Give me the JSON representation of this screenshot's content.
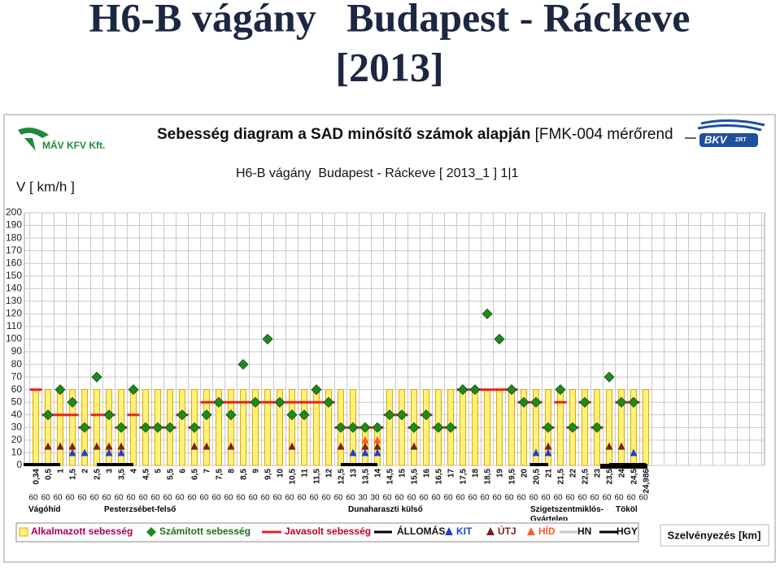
{
  "page_title": "H6-B vágány   Budapest - Ráckeve",
  "page_year": "[2013]",
  "logos": [
    "MÁV KFV Kft.",
    "BKV",
    "ZRT"
  ],
  "chart_data": {
    "type": "combo",
    "title": "Sebesség diagram a SAD minősítő számok alapján",
    "title_note": "[FMK-004 mérőrend",
    "subtitle": "H6-B vágány  Budapest - Ráckeve [ 2013_1 ] 1|1",
    "ylabel": "V [ km/h ]",
    "xlabel": "Szelvényezés [km]",
    "ylim": [
      0,
      200
    ],
    "yticks": [
      0,
      10,
      20,
      30,
      40,
      50,
      60,
      70,
      80,
      90,
      100,
      110,
      120,
      130,
      140,
      150,
      160,
      170,
      180,
      190,
      200
    ],
    "grid": true,
    "categories": [
      "0,34",
      "0,5",
      "1",
      "1,5",
      "2",
      "2,5",
      "3",
      "3,5",
      "4",
      "4,5",
      "5",
      "5,5",
      "6",
      "6,5",
      "7",
      "7,5",
      "8",
      "8,5",
      "9",
      "9,5",
      "10",
      "10,5",
      "11",
      "11,5",
      "12",
      "12,5",
      "13",
      "13,5",
      "14",
      "14,5",
      "15",
      "15,5",
      "16",
      "16,5",
      "17",
      "17,5",
      "18",
      "18,5",
      "19",
      "19,5",
      "20",
      "20,5",
      "21",
      "21,5",
      "22",
      "22,5",
      "23",
      "23,5",
      "24",
      "24,5",
      "24,986"
    ],
    "series": [
      {
        "name": "Alkalmazott sebesség",
        "type": "bar",
        "color": "#fff27a",
        "edge": "#e0a800",
        "legend_color": "#b0004e",
        "values": [
          60,
          60,
          60,
          60,
          60,
          60,
          60,
          60,
          60,
          60,
          60,
          60,
          60,
          60,
          60,
          60,
          60,
          60,
          60,
          60,
          60,
          60,
          60,
          60,
          60,
          60,
          60,
          30,
          30,
          60,
          60,
          60,
          60,
          60,
          60,
          60,
          60,
          60,
          60,
          60,
          60,
          60,
          60,
          60,
          60,
          60,
          60,
          60,
          60,
          60,
          60
        ]
      },
      {
        "name": "Számított sebesség",
        "type": "diamond",
        "color": "#1e8a1e",
        "legend_color": "#1e6e1e",
        "values": [
          null,
          40,
          60,
          50,
          30,
          70,
          40,
          30,
          60,
          30,
          30,
          30,
          40,
          30,
          40,
          50,
          40,
          80,
          50,
          100,
          50,
          40,
          40,
          60,
          50,
          30,
          30,
          30,
          30,
          40,
          40,
          30,
          40,
          30,
          30,
          60,
          60,
          120,
          100,
          60,
          50,
          50,
          30,
          60,
          30,
          50,
          30,
          70,
          50,
          50,
          null
        ]
      },
      {
        "name": "Javasolt sebesség",
        "type": "dash",
        "color": "#e5231f",
        "legend_color": "#c0002a",
        "values": [
          60,
          40,
          40,
          40,
          30,
          40,
          40,
          30,
          40,
          30,
          30,
          30,
          40,
          30,
          50,
          50,
          50,
          50,
          50,
          50,
          50,
          50,
          50,
          50,
          50,
          30,
          30,
          30,
          30,
          40,
          40,
          30,
          40,
          30,
          30,
          60,
          60,
          60,
          60,
          60,
          50,
          50,
          30,
          50,
          30,
          50,
          30,
          null,
          50,
          50,
          null
        ]
      },
      {
        "name": "KIT",
        "type": "triangle",
        "color": "#1f3fd6",
        "legend_color": "#1f3fd6",
        "values": [
          null,
          null,
          null,
          10,
          10,
          null,
          10,
          10,
          null,
          null,
          null,
          null,
          null,
          null,
          null,
          null,
          null,
          null,
          null,
          null,
          null,
          null,
          null,
          null,
          null,
          null,
          10,
          10,
          10,
          null,
          null,
          null,
          null,
          null,
          null,
          null,
          null,
          null,
          null,
          null,
          null,
          10,
          10,
          null,
          null,
          null,
          null,
          null,
          null,
          10,
          null
        ]
      },
      {
        "name": "ÚTJ",
        "type": "triangle",
        "color": "#7b1f1f",
        "legend_color": "#7b1f1f",
        "values": [
          null,
          15,
          15,
          15,
          null,
          15,
          15,
          15,
          null,
          null,
          null,
          null,
          null,
          15,
          15,
          null,
          15,
          null,
          null,
          null,
          null,
          15,
          null,
          null,
          null,
          15,
          null,
          15,
          15,
          null,
          null,
          15,
          null,
          null,
          null,
          null,
          null,
          null,
          null,
          null,
          null,
          null,
          15,
          null,
          null,
          null,
          null,
          15,
          15,
          null,
          null
        ]
      },
      {
        "name": "HÍD",
        "type": "triangle",
        "color": "#ff5a28",
        "legend_color": "#ff5a28",
        "values": [
          null,
          null,
          null,
          null,
          null,
          null,
          null,
          null,
          null,
          null,
          null,
          null,
          null,
          null,
          null,
          null,
          null,
          null,
          null,
          null,
          null,
          null,
          null,
          null,
          null,
          null,
          null,
          20,
          20,
          null,
          null,
          null,
          null,
          null,
          null,
          null,
          null,
          null,
          null,
          null,
          null,
          null,
          null,
          null,
          null,
          null,
          null,
          null,
          null,
          null,
          null
        ]
      }
    ],
    "legend_only": [
      {
        "name": "ÁLLOMÁS",
        "color": "#000000"
      },
      {
        "name": "HN",
        "color": "#c8c8c8"
      },
      {
        "name": "HGY",
        "color": "#000000"
      }
    ],
    "stations": [
      "Vágóhíd",
      "Pesterzsébet-felső",
      "Dunaharaszti külső",
      "Szigetszentmiklós-Gyártelep",
      "Tököl"
    ]
  }
}
